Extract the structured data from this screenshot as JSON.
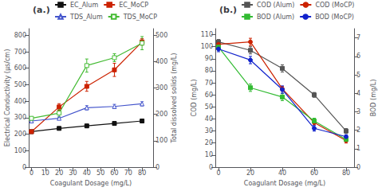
{
  "chart_data": [
    {
      "type": "line",
      "annotation": "(a.)",
      "xlabel": "Coagulant Dosage (mg/L)",
      "ylabel": "Electrical Conductivity (µs/cm)",
      "y2label": "Total dissolved solids (mg/L)",
      "x": [
        0,
        20,
        40,
        60,
        80
      ],
      "xlim": [
        -2,
        88
      ],
      "xticks": [
        0,
        10,
        20,
        30,
        40,
        50,
        60,
        70,
        80
      ],
      "ylim": [
        0,
        840
      ],
      "yticks": [
        0,
        100,
        200,
        300,
        400,
        500,
        600,
        700,
        800
      ],
      "y2lim": [
        0,
        525
      ],
      "y2ticks": [
        0,
        100,
        200,
        300,
        400,
        500
      ],
      "grid": false,
      "legend": "top",
      "series": [
        {
          "name": "EC_Alum",
          "color": "#111111",
          "marker": "square",
          "axis": "y",
          "values": [
            215,
            235,
            250,
            265,
            280
          ],
          "errors": [
            5,
            8,
            8,
            10,
            12
          ]
        },
        {
          "name": "EC_MoCP",
          "color": "#cc2200",
          "marker": "square",
          "axis": "y",
          "values": [
            215,
            365,
            490,
            590,
            760
          ],
          "errors": [
            5,
            20,
            30,
            40,
            20
          ]
        },
        {
          "name": "TDS_Alum",
          "color": "#4455cc",
          "marker": "triangle-open",
          "axis": "y2",
          "values": [
            175,
            185,
            225,
            230,
            240
          ],
          "errors": [
            5,
            5,
            8,
            8,
            8
          ]
        },
        {
          "name": "TDS_MoCP",
          "color": "#44bb33",
          "marker": "square-open",
          "axis": "y2",
          "values": [
            185,
            205,
            385,
            415,
            470
          ],
          "errors": [
            5,
            15,
            25,
            15,
            25
          ]
        }
      ]
    },
    {
      "type": "line",
      "annotation": "(b.)",
      "xlabel": "Coagulant Dosage (mg/L)",
      "ylabel": "COD (mg/L)",
      "y2label": "BOD (mg/L)",
      "x": [
        0,
        20,
        40,
        60,
        80
      ],
      "xlim": [
        -2,
        85
      ],
      "xticks": [
        0,
        20,
        40,
        60,
        80
      ],
      "ylim": [
        0,
        115
      ],
      "yticks": [
        0,
        10,
        20,
        30,
        40,
        50,
        60,
        70,
        80,
        90,
        100,
        110
      ],
      "y2lim": [
        0,
        7.5
      ],
      "y2ticks": [
        0,
        1,
        2,
        3,
        4,
        5,
        6,
        7
      ],
      "grid": false,
      "legend": "top",
      "series": [
        {
          "name": "COD (Alum)",
          "color": "#555555",
          "marker": "square",
          "axis": "y",
          "values": [
            104,
            97,
            82,
            60,
            30
          ],
          "errors": [
            2,
            3,
            3,
            2,
            2
          ]
        },
        {
          "name": "COD (MoCP)",
          "color": "#cc2200",
          "marker": "circle",
          "axis": "y",
          "values": [
            102,
            104,
            65,
            37,
            22
          ],
          "errors": [
            2,
            3,
            2,
            2,
            2
          ]
        },
        {
          "name": "BOD (Alum)",
          "color": "#33bb33",
          "marker": "square",
          "axis": "y2",
          "values": [
            6.5,
            4.3,
            3.8,
            2.5,
            1.5
          ],
          "errors": [
            0.15,
            0.2,
            0.2,
            0.15,
            0.1
          ]
        },
        {
          "name": "BOD (MoCP)",
          "color": "#1122cc",
          "marker": "circle",
          "axis": "y2",
          "values": [
            6.4,
            5.8,
            4.2,
            2.1,
            1.65
          ],
          "errors": [
            0.15,
            0.2,
            0.2,
            0.15,
            0.1
          ]
        }
      ]
    }
  ]
}
